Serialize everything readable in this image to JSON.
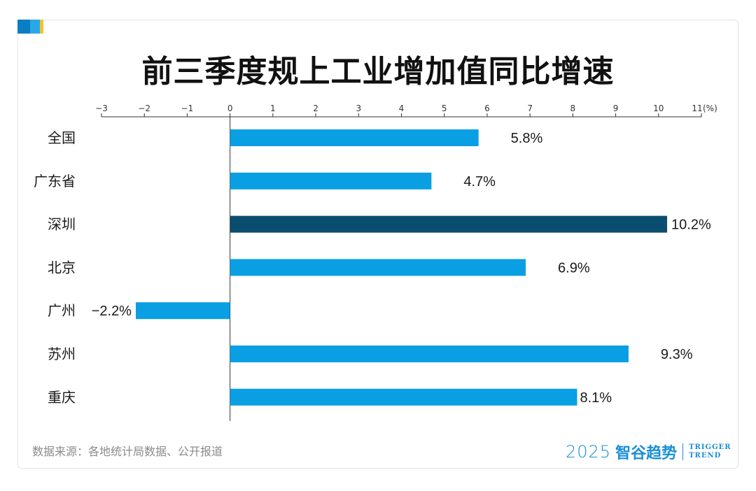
{
  "title": "前三季度规上工业增加值同比增速",
  "source": "数据来源：各地统计局数据、公开报道",
  "brand": {
    "year": "2025",
    "name": "智谷趋势",
    "en_line1": "TRIGGER",
    "en_line2": "TREND"
  },
  "colors": {
    "bar": "#0a9fe2",
    "highlight": "#0b4d6e",
    "accent1": "#0a7fc4",
    "accent2": "#2aa7e8",
    "accent3": "#f2c230"
  },
  "chart_data": {
    "type": "bar",
    "orientation": "horizontal",
    "categories": [
      "全国",
      "广东省",
      "深圳",
      "北京",
      "广州",
      "苏州",
      "重庆"
    ],
    "values": [
      5.8,
      4.7,
      10.2,
      6.9,
      -2.2,
      9.3,
      8.1
    ],
    "value_labels": [
      "5.8%",
      "4.7%",
      "10.2%",
      "6.9%",
      "−2.2%",
      "9.3%",
      "8.1%"
    ],
    "highlight_category": "深圳",
    "xlim": [
      -3,
      11
    ],
    "xticks": [
      -3,
      -2,
      -1,
      0,
      1,
      2,
      3,
      4,
      5,
      6,
      7,
      8,
      9,
      10,
      11
    ],
    "xtick_labels": [
      "−3",
      "−2",
      "−1",
      "0",
      "1",
      "2",
      "3",
      "4",
      "5",
      "6",
      "7",
      "8",
      "9",
      "10",
      "11"
    ],
    "x_unit": "(%)",
    "axis_position": "top",
    "grid": false,
    "legend": "none"
  }
}
